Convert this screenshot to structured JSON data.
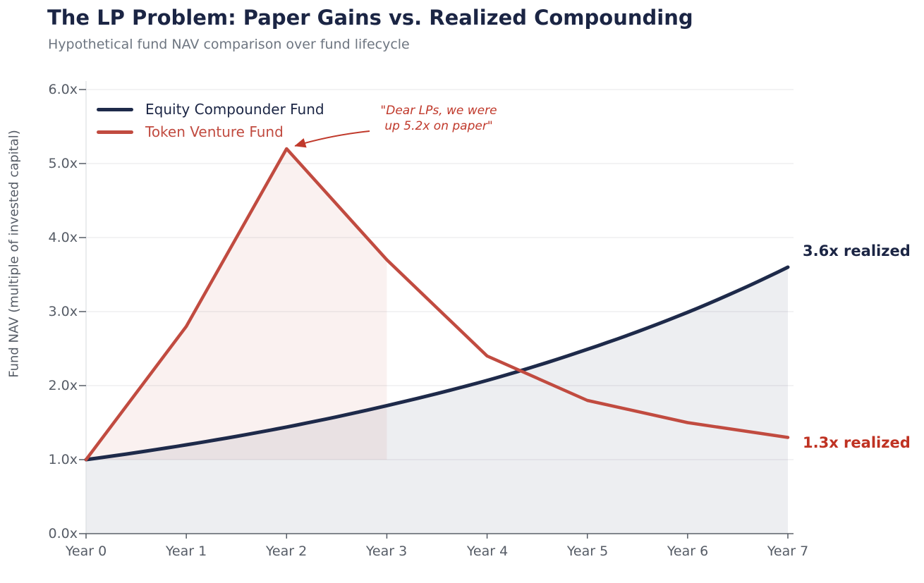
{
  "title": "The LP Problem: Paper Gains vs. Realized Compounding",
  "subtitle": "Hypothetical fund NAV comparison over fund lifecycle",
  "colors": {
    "navy": "#1e2a4a",
    "red": "#c14b40",
    "title_navy": "#1b2544",
    "subtitle_gray": "#6e7681",
    "axis_text": "#565c66",
    "grid": "#ececee",
    "bottom_spine": "#3d434c",
    "left_spine": "#dcdfe3",
    "equity_area_fill": "rgba(31,42,74,0.08)",
    "token_area_fill": "rgba(193,75,64,0.08)",
    "annotation_red": "#c0392b",
    "realized_red": "#bf3222"
  },
  "chart_data": {
    "type": "line",
    "categories": [
      "Year 0",
      "Year 1",
      "Year 2",
      "Year 3",
      "Year 4",
      "Year 5",
      "Year 6",
      "Year 7"
    ],
    "series": [
      {
        "name": "Equity Compounder Fund",
        "values": [
          1.0,
          1.2,
          1.44,
          1.73,
          2.07,
          2.49,
          2.99,
          3.6
        ],
        "color": "#1e2a4a",
        "style": "smooth",
        "area": "fill-to-zero"
      },
      {
        "name": "Token Venture Fund",
        "values": [
          1.0,
          2.8,
          5.2,
          3.7,
          2.4,
          1.8,
          1.5,
          1.3
        ],
        "color": "#c14b40",
        "style": "straight-segments",
        "area": "fill-to-1.0x-from-year0-to-year3"
      }
    ],
    "xlabel": "",
    "ylabel": "Fund NAV (multiple of invested capital)",
    "ytick_labels": [
      "0.0x",
      "1.0x",
      "2.0x",
      "3.0x",
      "4.0x",
      "5.0x",
      "6.0x"
    ],
    "ylim": [
      0,
      6.0
    ],
    "grid": "horizontal",
    "legend_position": "upper-left",
    "annotations": [
      {
        "id": "paper_peak",
        "line1": "\"Dear LPs, we were",
        "line2": "up 5.2x on paper\"",
        "points_to": {
          "x": "Year 2",
          "y": 5.2
        },
        "color": "#c0392b"
      },
      {
        "id": "equity_end",
        "text": "3.6x realized",
        "at": {
          "x": "Year 7",
          "y": 3.6
        },
        "color": "#1b2544"
      },
      {
        "id": "token_end",
        "text": "1.3x realized",
        "at": {
          "x": "Year 7",
          "y": 1.3
        },
        "color": "#bf3222"
      }
    ]
  }
}
